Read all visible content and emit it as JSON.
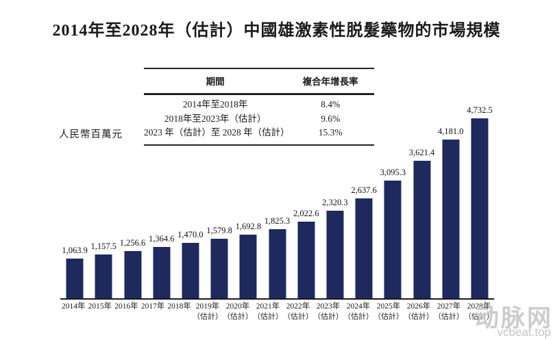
{
  "title": "2014年至2028年（估計）中國雄激素性脱髮藥物的市場規模",
  "cagr_table": {
    "headers": {
      "period": "期間",
      "cagr": "複合年增長率"
    },
    "rows": [
      {
        "period": "2014年至2018年",
        "cagr": "8.4%"
      },
      {
        "period": "2018年至2023年（估計）",
        "cagr": "9.6%"
      },
      {
        "period": "2023 年（估計）至 2028 年（估計）",
        "cagr": "15.3%"
      }
    ]
  },
  "chart_data": {
    "type": "bar",
    "title": "2014年至2028年（估計）中國雄激素性脱髮藥物的市場規模",
    "ylabel": "人民幣百萬元",
    "xlabel": "",
    "ylim": [
      0,
      4732.5
    ],
    "grid": false,
    "legend": "none",
    "bar_color": "#1e2a5e",
    "categories": [
      "2014年",
      "2015年",
      "2016年",
      "2017年",
      "2018年",
      "2019年",
      "2020年",
      "2021年",
      "2022年",
      "2023年",
      "2024年",
      "2025年",
      "2026年",
      "2027年",
      "2028年"
    ],
    "category_notes": [
      "",
      "",
      "",
      "",
      "",
      "（估計）",
      "（估計）",
      "（估計）",
      "（估計）",
      "（估計）",
      "（估計）",
      "（估計）",
      "（估計）",
      "（估計）",
      "（估計）"
    ],
    "values": [
      1063.9,
      1157.5,
      1256.6,
      1364.6,
      1470.0,
      1579.8,
      1692.8,
      1825.3,
      2022.6,
      2320.3,
      2637.6,
      3095.3,
      3621.4,
      4181.0,
      4732.5
    ],
    "value_labels": [
      "1,063.9",
      "1,157.5",
      "1,256.6",
      "1,364.6",
      "1,470.0",
      "1,579.8",
      "1,692.8",
      "1,825.3",
      "2,022.6",
      "2,320.3",
      "2,637.6",
      "3,095.3",
      "3,621.4",
      "4,181.0",
      "4,732.5"
    ]
  },
  "watermark": {
    "logo_text": "动脉网",
    "site": "vcbeat.top"
  }
}
